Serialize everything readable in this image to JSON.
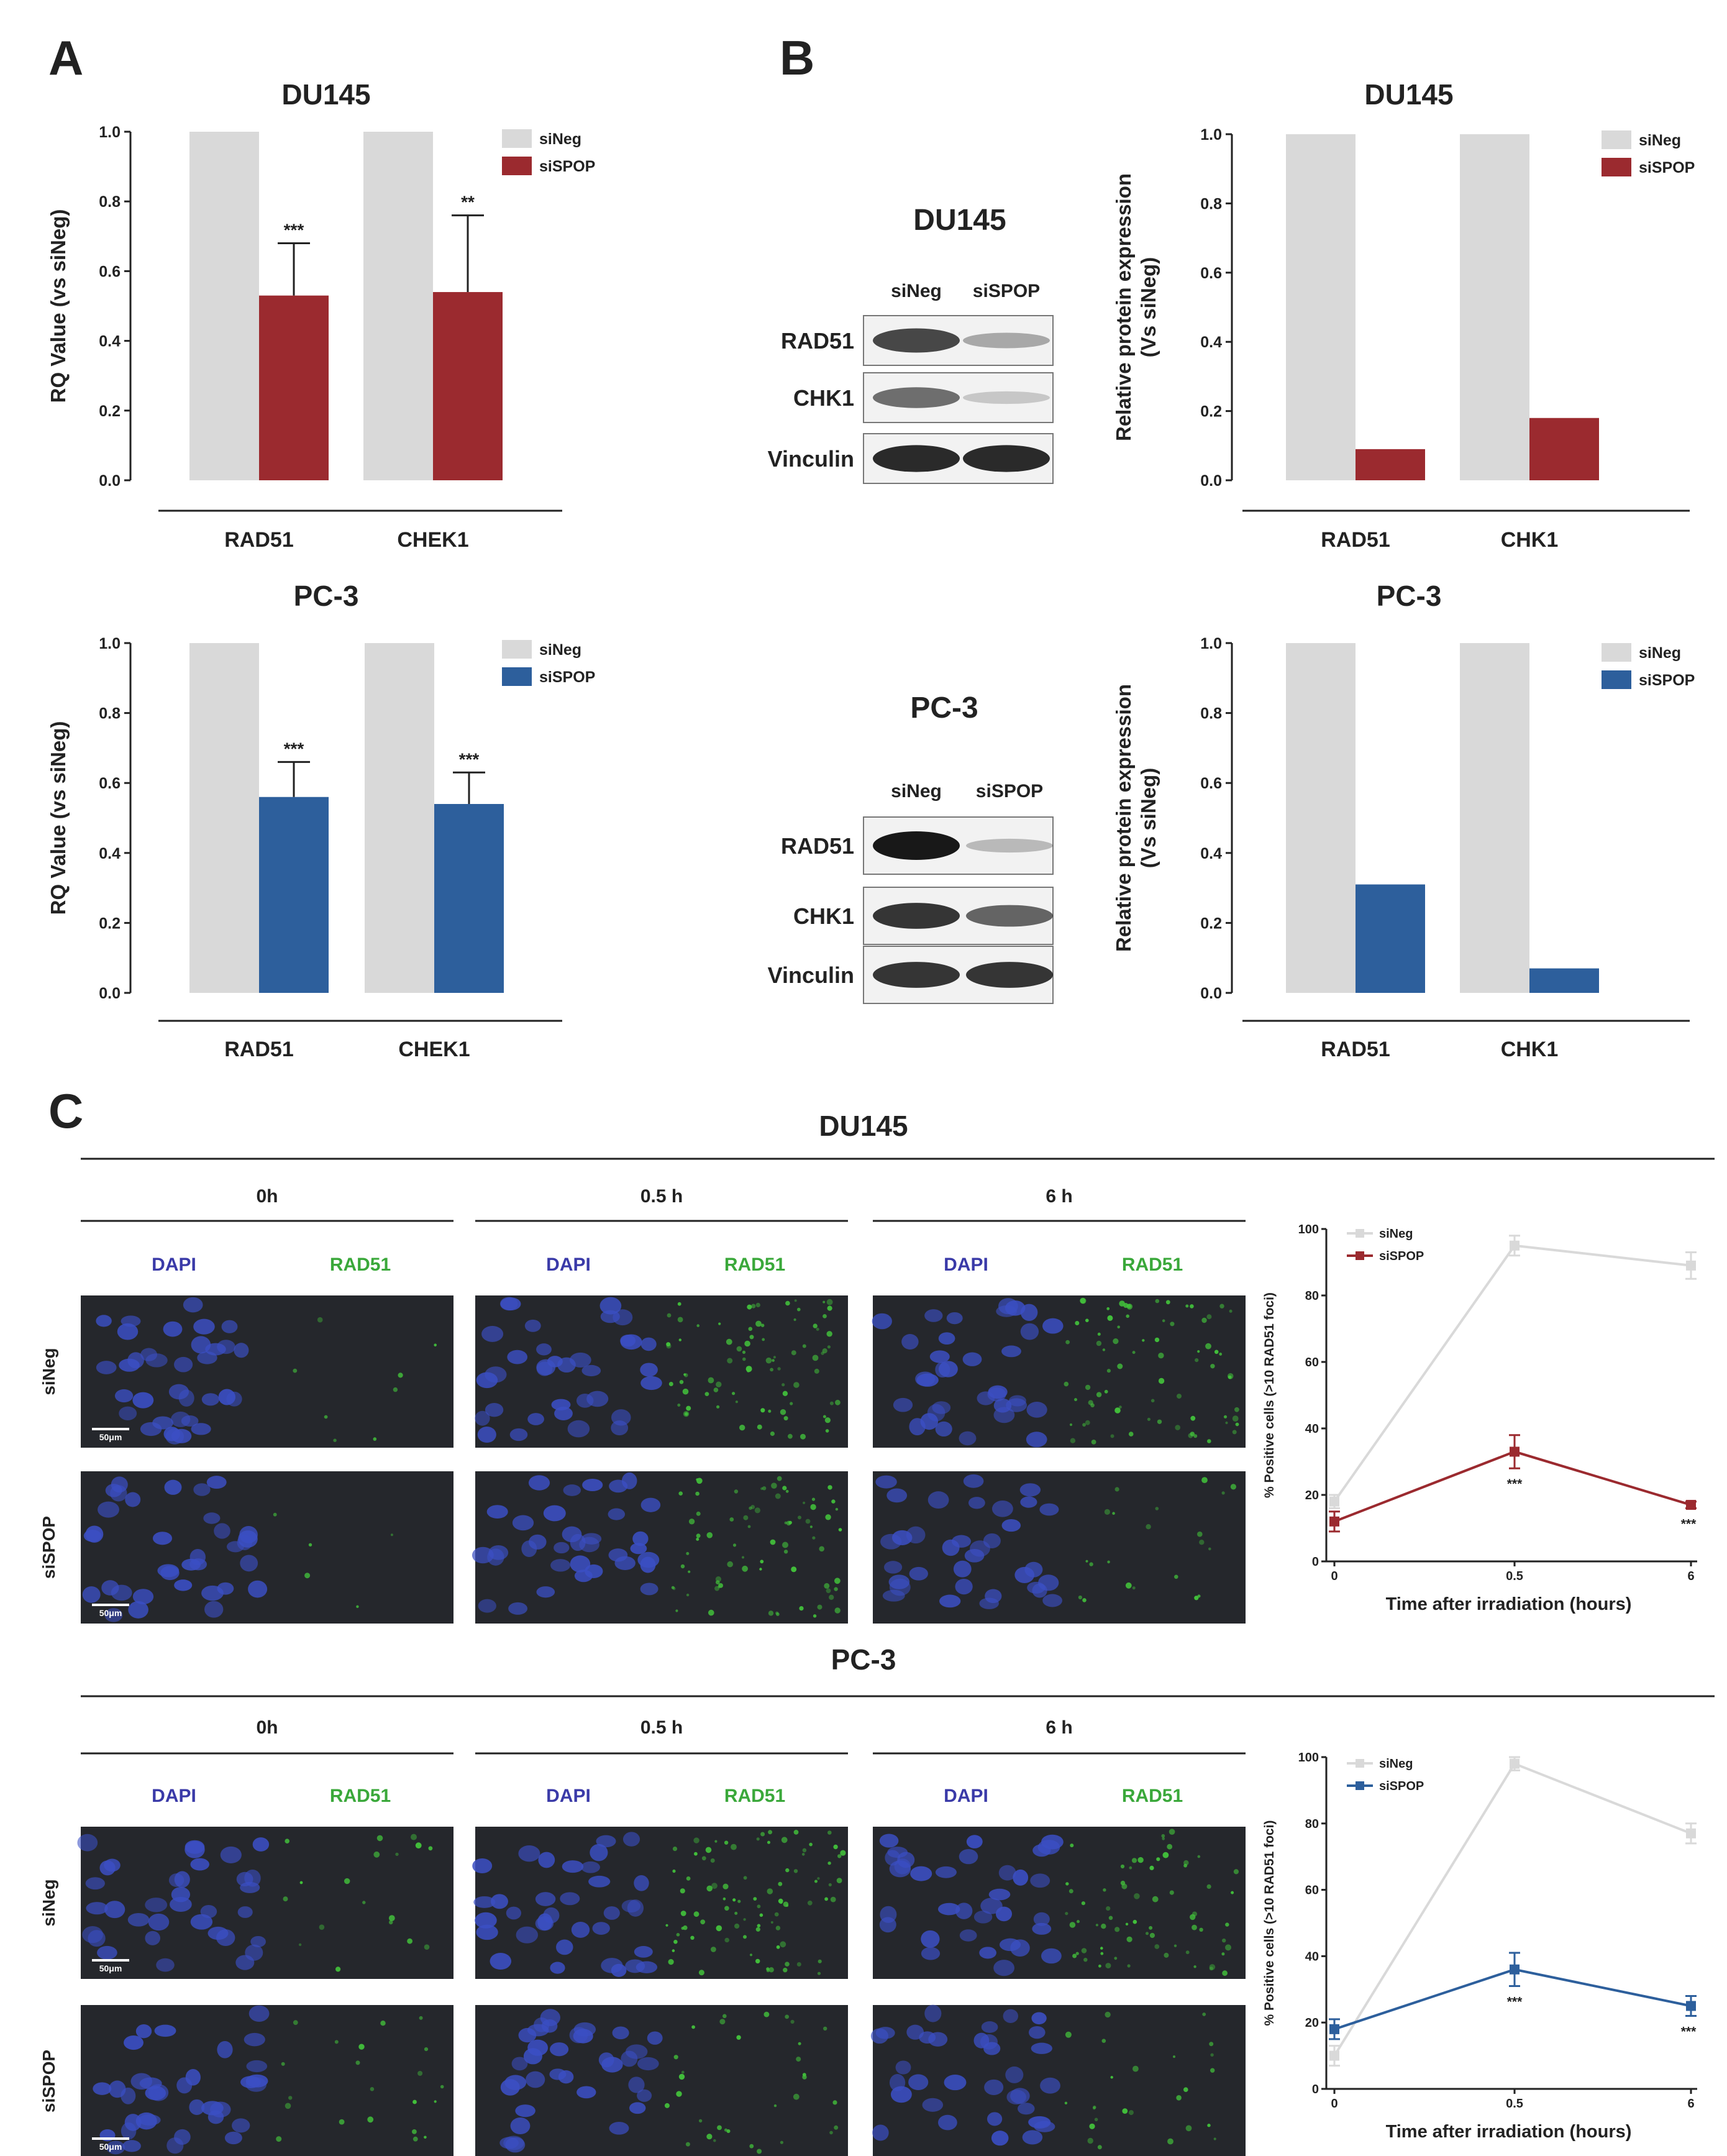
{
  "panel_labels": {
    "a": "A",
    "b": "B",
    "c": "C"
  },
  "colors": {
    "sineg": "#d9d9d9",
    "sispop_du145": "#9b2a2f",
    "sispop_pc3": "#2d5f9c",
    "text": "#222222",
    "micro_bg": "#25272c",
    "dapi": "#3b4fc4",
    "rad51": "#42c13b"
  },
  "chart_data": [
    {
      "id": "a_du145",
      "type": "bar",
      "title": "DU145",
      "ylabel": "RQ Value (vs siNeg)",
      "xlabel": "",
      "ylim": [
        0,
        1.0
      ],
      "yticks": [
        "0.0",
        "0.2",
        "0.4",
        "0.6",
        "0.8",
        "1.0"
      ],
      "categories": [
        "RAD51",
        "CHEK1"
      ],
      "series": [
        {
          "name": "siNeg",
          "values": [
            1.0,
            1.0
          ]
        },
        {
          "name": "siSPOP",
          "values": [
            0.53,
            0.54
          ],
          "errors": [
            0.15,
            0.22
          ]
        }
      ],
      "significance": [
        "***",
        "**"
      ],
      "legend": [
        "siNeg",
        "siSPOP"
      ]
    },
    {
      "id": "a_pc3",
      "type": "bar",
      "title": "PC-3",
      "ylabel": "RQ Value (vs siNeg)",
      "xlabel": "",
      "ylim": [
        0,
        1.0
      ],
      "yticks": [
        "0.0",
        "0.2",
        "0.4",
        "0.6",
        "0.8",
        "1.0"
      ],
      "categories": [
        "RAD51",
        "CHEK1"
      ],
      "series": [
        {
          "name": "siNeg",
          "values": [
            1.0,
            1.0
          ]
        },
        {
          "name": "siSPOP",
          "values": [
            0.56,
            0.54
          ],
          "errors": [
            0.1,
            0.09
          ]
        }
      ],
      "significance": [
        "***",
        "***"
      ],
      "legend": [
        "siNeg",
        "siSPOP"
      ]
    },
    {
      "id": "b_du145",
      "type": "bar",
      "title": "DU145",
      "ylabel": "Relative protein expression (Vs siNeg)",
      "ylabel_lines": [
        "Relative protein expression",
        "(Vs siNeg)"
      ],
      "xlabel": "",
      "ylim": [
        0,
        1.0
      ],
      "yticks": [
        "0.0",
        "0.2",
        "0.4",
        "0.6",
        "0.8",
        "1.0"
      ],
      "categories": [
        "RAD51",
        "CHK1"
      ],
      "series": [
        {
          "name": "siNeg",
          "values": [
            1.0,
            1.0
          ]
        },
        {
          "name": "siSPOP",
          "values": [
            0.09,
            0.18
          ]
        }
      ],
      "legend": [
        "siNeg",
        "siSPOP"
      ]
    },
    {
      "id": "b_pc3",
      "type": "bar",
      "title": "PC-3",
      "ylabel": "Relative protein expression (Vs siNeg)",
      "ylabel_lines": [
        "Relative protein expression",
        "(Vs siNeg)"
      ],
      "xlabel": "",
      "ylim": [
        0,
        1.0
      ],
      "yticks": [
        "0.0",
        "0.2",
        "0.4",
        "0.6",
        "0.8",
        "1.0"
      ],
      "categories": [
        "RAD51",
        "CHK1"
      ],
      "series": [
        {
          "name": "siNeg",
          "values": [
            1.0,
            1.0
          ]
        },
        {
          "name": "siSPOP",
          "values": [
            0.31,
            0.07
          ]
        }
      ],
      "legend": [
        "siNeg",
        "siSPOP"
      ]
    },
    {
      "id": "c_du145",
      "type": "line",
      "title": "",
      "xlabel": "Time after irradiation (hours)",
      "ylabel": "% Positive cells (>10 RAD51 foci)",
      "x": [
        "0",
        "0.5",
        "6"
      ],
      "ylim": [
        0,
        100
      ],
      "yticks": [
        "0",
        "20",
        "40",
        "60",
        "80",
        "100"
      ],
      "series": [
        {
          "name": "siNeg",
          "values": [
            18,
            95,
            89
          ],
          "errors": [
            2,
            3,
            4
          ]
        },
        {
          "name": "siSPOP",
          "values": [
            12,
            33,
            17
          ],
          "errors": [
            3,
            5,
            1
          ]
        }
      ],
      "significance": [
        "",
        "***",
        "***"
      ],
      "legend": [
        "siNeg",
        "siSPOP"
      ]
    },
    {
      "id": "c_pc3",
      "type": "line",
      "title": "",
      "xlabel": "Time after irradiation (hours)",
      "ylabel": "% Positive cells (>10 RAD51 foci)",
      "x": [
        "0",
        "0.5",
        "6"
      ],
      "ylim": [
        0,
        100
      ],
      "yticks": [
        "0",
        "20",
        "40",
        "60",
        "80",
        "100"
      ],
      "series": [
        {
          "name": "siNeg",
          "values": [
            10,
            98,
            77
          ],
          "errors": [
            3,
            2,
            3
          ]
        },
        {
          "name": "siSPOP",
          "values": [
            18,
            36,
            25
          ],
          "errors": [
            3,
            5,
            3
          ]
        }
      ],
      "significance": [
        "",
        "***",
        "***"
      ],
      "legend": [
        "siNeg",
        "siSPOP"
      ]
    }
  ],
  "western_blots": [
    {
      "title": "DU145",
      "lanes": [
        "siNeg",
        "siSPOP"
      ],
      "rows": [
        {
          "label": "RAD51",
          "intensity": [
            0.75,
            0.25
          ]
        },
        {
          "label": "CHK1",
          "intensity": [
            0.55,
            0.08
          ]
        },
        {
          "label": "Vinculin",
          "intensity": [
            0.9,
            0.9
          ]
        }
      ]
    },
    {
      "title": "PC-3",
      "lanes": [
        "siNeg",
        "siSPOP"
      ],
      "rows": [
        {
          "label": "RAD51",
          "intensity": [
            1.0,
            0.15
          ]
        },
        {
          "label": "CHK1",
          "intensity": [
            0.85,
            0.6
          ]
        },
        {
          "label": "Vinculin",
          "intensity": [
            0.85,
            0.85
          ]
        }
      ]
    }
  ],
  "microscopy": [
    {
      "title": "DU145",
      "timepoints": [
        "0h",
        "0.5 h",
        "6 h"
      ],
      "stains": [
        "DAPI",
        "RAD51"
      ],
      "rows": [
        "siNeg",
        "siSPOP"
      ],
      "rad51_level": [
        [
          0.03,
          0.55,
          0.5
        ],
        [
          0.01,
          0.5,
          0.12
        ]
      ]
    },
    {
      "title": "PC-3",
      "timepoints": [
        "0h",
        "0.5 h",
        "6 h"
      ],
      "stains": [
        "DAPI",
        "RAD51"
      ],
      "rows": [
        "siNeg",
        "siSPOP"
      ],
      "rad51_level": [
        [
          0.1,
          0.6,
          0.45
        ],
        [
          0.12,
          0.2,
          0.15
        ]
      ]
    }
  ],
  "scale_bar_label": "50μm"
}
